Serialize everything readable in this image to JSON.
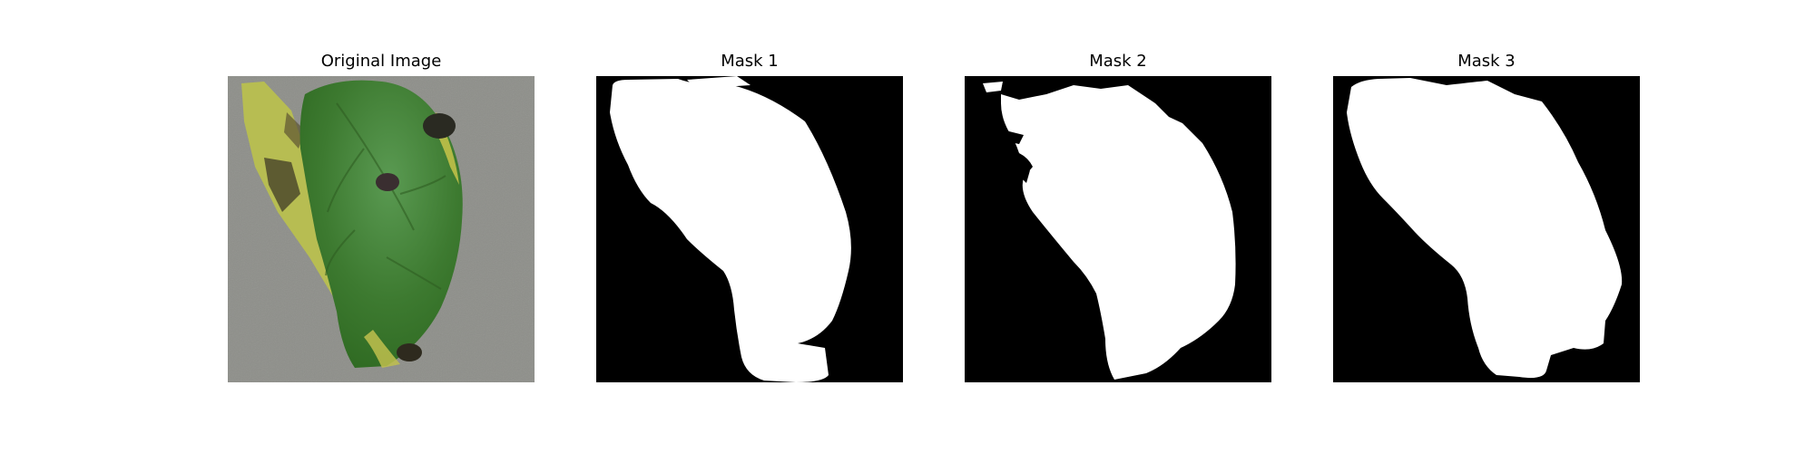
{
  "figure": {
    "panels": [
      {
        "title": "Original Image"
      },
      {
        "title": "Mask 1"
      },
      {
        "title": "Mask 2"
      },
      {
        "title": "Mask 3"
      }
    ]
  },
  "colors": {
    "background": "#ffffff",
    "mask_background": "#000000",
    "mask_foreground": "#ffffff",
    "leaf_green": "#3f7d2f",
    "leaf_yellow": "#c9c95a",
    "ground_gray": "#8f8f8a"
  }
}
